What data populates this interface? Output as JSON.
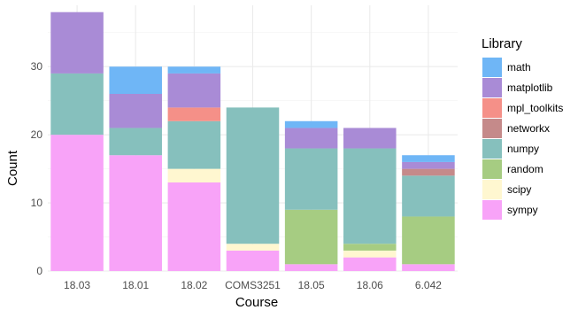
{
  "chart_data": {
    "type": "bar",
    "stacked": true,
    "xlabel": "Course",
    "ylabel": "Count",
    "legend_title": "Library",
    "legend_position": "right",
    "ylim": [
      0,
      39
    ],
    "yticks": [
      0,
      10,
      20,
      30
    ],
    "grid": true,
    "categories": [
      "18.03",
      "18.01",
      "18.02",
      "COMS3251",
      "18.05",
      "18.06",
      "6.042"
    ],
    "series": [
      {
        "name": "sympy",
        "color": "#F8A3F8",
        "values": [
          20,
          17,
          13,
          3,
          1,
          2,
          1
        ]
      },
      {
        "name": "scipy",
        "color": "#FFF7D0",
        "values": [
          0,
          0,
          2,
          1,
          0,
          1,
          0
        ]
      },
      {
        "name": "random",
        "color": "#A6CC82",
        "values": [
          0,
          0,
          0,
          0,
          8,
          1,
          7
        ]
      },
      {
        "name": "numpy",
        "color": "#86C0BD",
        "values": [
          9,
          4,
          7,
          20,
          9,
          14,
          6
        ]
      },
      {
        "name": "networkx",
        "color": "#C58A8A",
        "values": [
          0,
          0,
          0,
          0,
          0,
          0,
          1
        ]
      },
      {
        "name": "mpl_toolkits",
        "color": "#F59088",
        "values": [
          0,
          0,
          2,
          0,
          0,
          0,
          0
        ]
      },
      {
        "name": "matplotlib",
        "color": "#A98BD6",
        "values": [
          9,
          5,
          5,
          0,
          3,
          3,
          1
        ]
      },
      {
        "name": "math",
        "color": "#6FB6F6",
        "values": [
          0,
          4,
          1,
          0,
          1,
          0,
          1
        ]
      }
    ],
    "legend_order": [
      "math",
      "matplotlib",
      "mpl_toolkits",
      "networkx",
      "numpy",
      "random",
      "scipy",
      "sympy"
    ]
  }
}
